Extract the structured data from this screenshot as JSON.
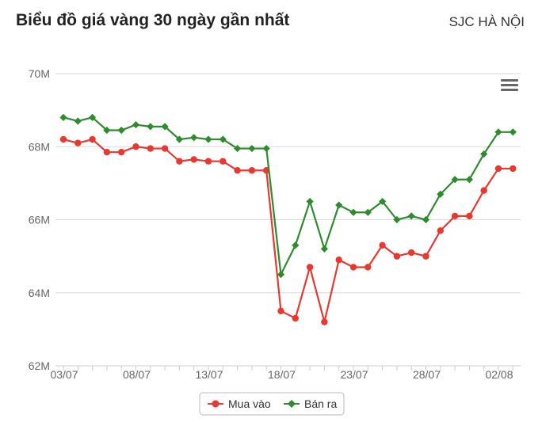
{
  "header": {
    "title": "Biểu đồ giá vàng 30 ngày gần nhất",
    "location": "SJC HÀ NỘI"
  },
  "menu_icon": "hamburger-menu-icon",
  "colors": {
    "buy": "#e8382f",
    "sell": "#2e8b2e",
    "grid": "#d8d8d8",
    "axis": "#cccccc"
  },
  "chart_data": {
    "type": "line",
    "title": "Biểu đồ giá vàng 30 ngày gần nhất",
    "subtitle": "SJC HÀ NỘI",
    "x_ticks": [
      "03/07",
      "08/07",
      "13/07",
      "18/07",
      "23/07",
      "28/07",
      "02/08"
    ],
    "x_tick_positions": [
      0,
      5,
      10,
      15,
      20,
      25,
      30
    ],
    "y_ticks": [
      "62M",
      "64M",
      "66M",
      "68M",
      "70M"
    ],
    "y_tick_values": [
      62,
      64,
      66,
      68,
      70
    ],
    "ylim": [
      62,
      70
    ],
    "grid": true,
    "legend_position": "bottom-center",
    "series": [
      {
        "name": "Mua vào",
        "color": "#e8382f",
        "marker": "circle",
        "values": [
          68.2,
          68.1,
          68.2,
          67.85,
          67.85,
          68.0,
          67.95,
          67.95,
          67.6,
          67.65,
          67.6,
          67.6,
          67.35,
          67.35,
          67.35,
          63.5,
          63.3,
          64.7,
          63.2,
          64.9,
          64.7,
          64.7,
          65.3,
          65.0,
          65.1,
          65.0,
          65.7,
          66.1,
          66.1,
          66.8,
          67.4,
          67.4
        ]
      },
      {
        "name": "Bán ra",
        "color": "#2e8b2e",
        "marker": "diamond",
        "values": [
          68.8,
          68.7,
          68.8,
          68.45,
          68.45,
          68.6,
          68.55,
          68.55,
          68.2,
          68.25,
          68.2,
          68.2,
          67.95,
          67.95,
          67.95,
          64.5,
          65.3,
          66.5,
          65.2,
          66.4,
          66.2,
          66.2,
          66.5,
          66.0,
          66.1,
          66.0,
          66.7,
          67.1,
          67.1,
          67.8,
          68.4,
          68.4
        ]
      }
    ]
  }
}
